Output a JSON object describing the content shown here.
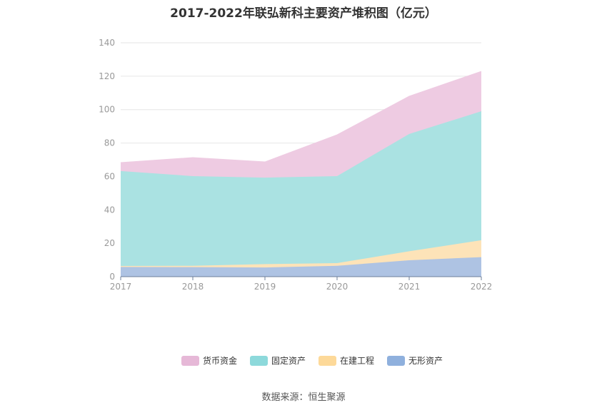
{
  "chart_data": {
    "type": "area",
    "stacked": true,
    "title": "2017-2022年联弘新科主要资产堆积图（亿元）",
    "categories": [
      "2017",
      "2018",
      "2019",
      "2020",
      "2021",
      "2022"
    ],
    "ylim": [
      0,
      140
    ],
    "yticks": [
      0,
      20,
      40,
      60,
      80,
      100,
      120,
      140
    ],
    "grid": true,
    "legend_position": "bottom",
    "series": [
      {
        "name": "无形资产",
        "color": "#8fb0dd",
        "fill": "#aec3e3",
        "values": [
          5.8,
          5.7,
          5.5,
          6.5,
          9.8,
          11.7
        ]
      },
      {
        "name": "在建工程",
        "color": "#fdd999",
        "fill": "#fde3b8",
        "values": [
          0.6,
          0.8,
          2.0,
          1.6,
          5.4,
          10.1
        ]
      },
      {
        "name": "固定资产",
        "color": "#8dd9db",
        "fill": "#aae2e2",
        "values": [
          56.8,
          53.7,
          51.8,
          52.1,
          70.2,
          77.2
        ]
      },
      {
        "name": "货币资金",
        "color": "#e6b8d7",
        "fill": "#eecbe2",
        "values": [
          5.1,
          11.1,
          9.4,
          24.7,
          22.6,
          23.9
        ]
      }
    ],
    "legend_order": [
      "货币资金",
      "固定资产",
      "在建工程",
      "无形资产"
    ]
  },
  "source": "数据来源：恒生聚源"
}
